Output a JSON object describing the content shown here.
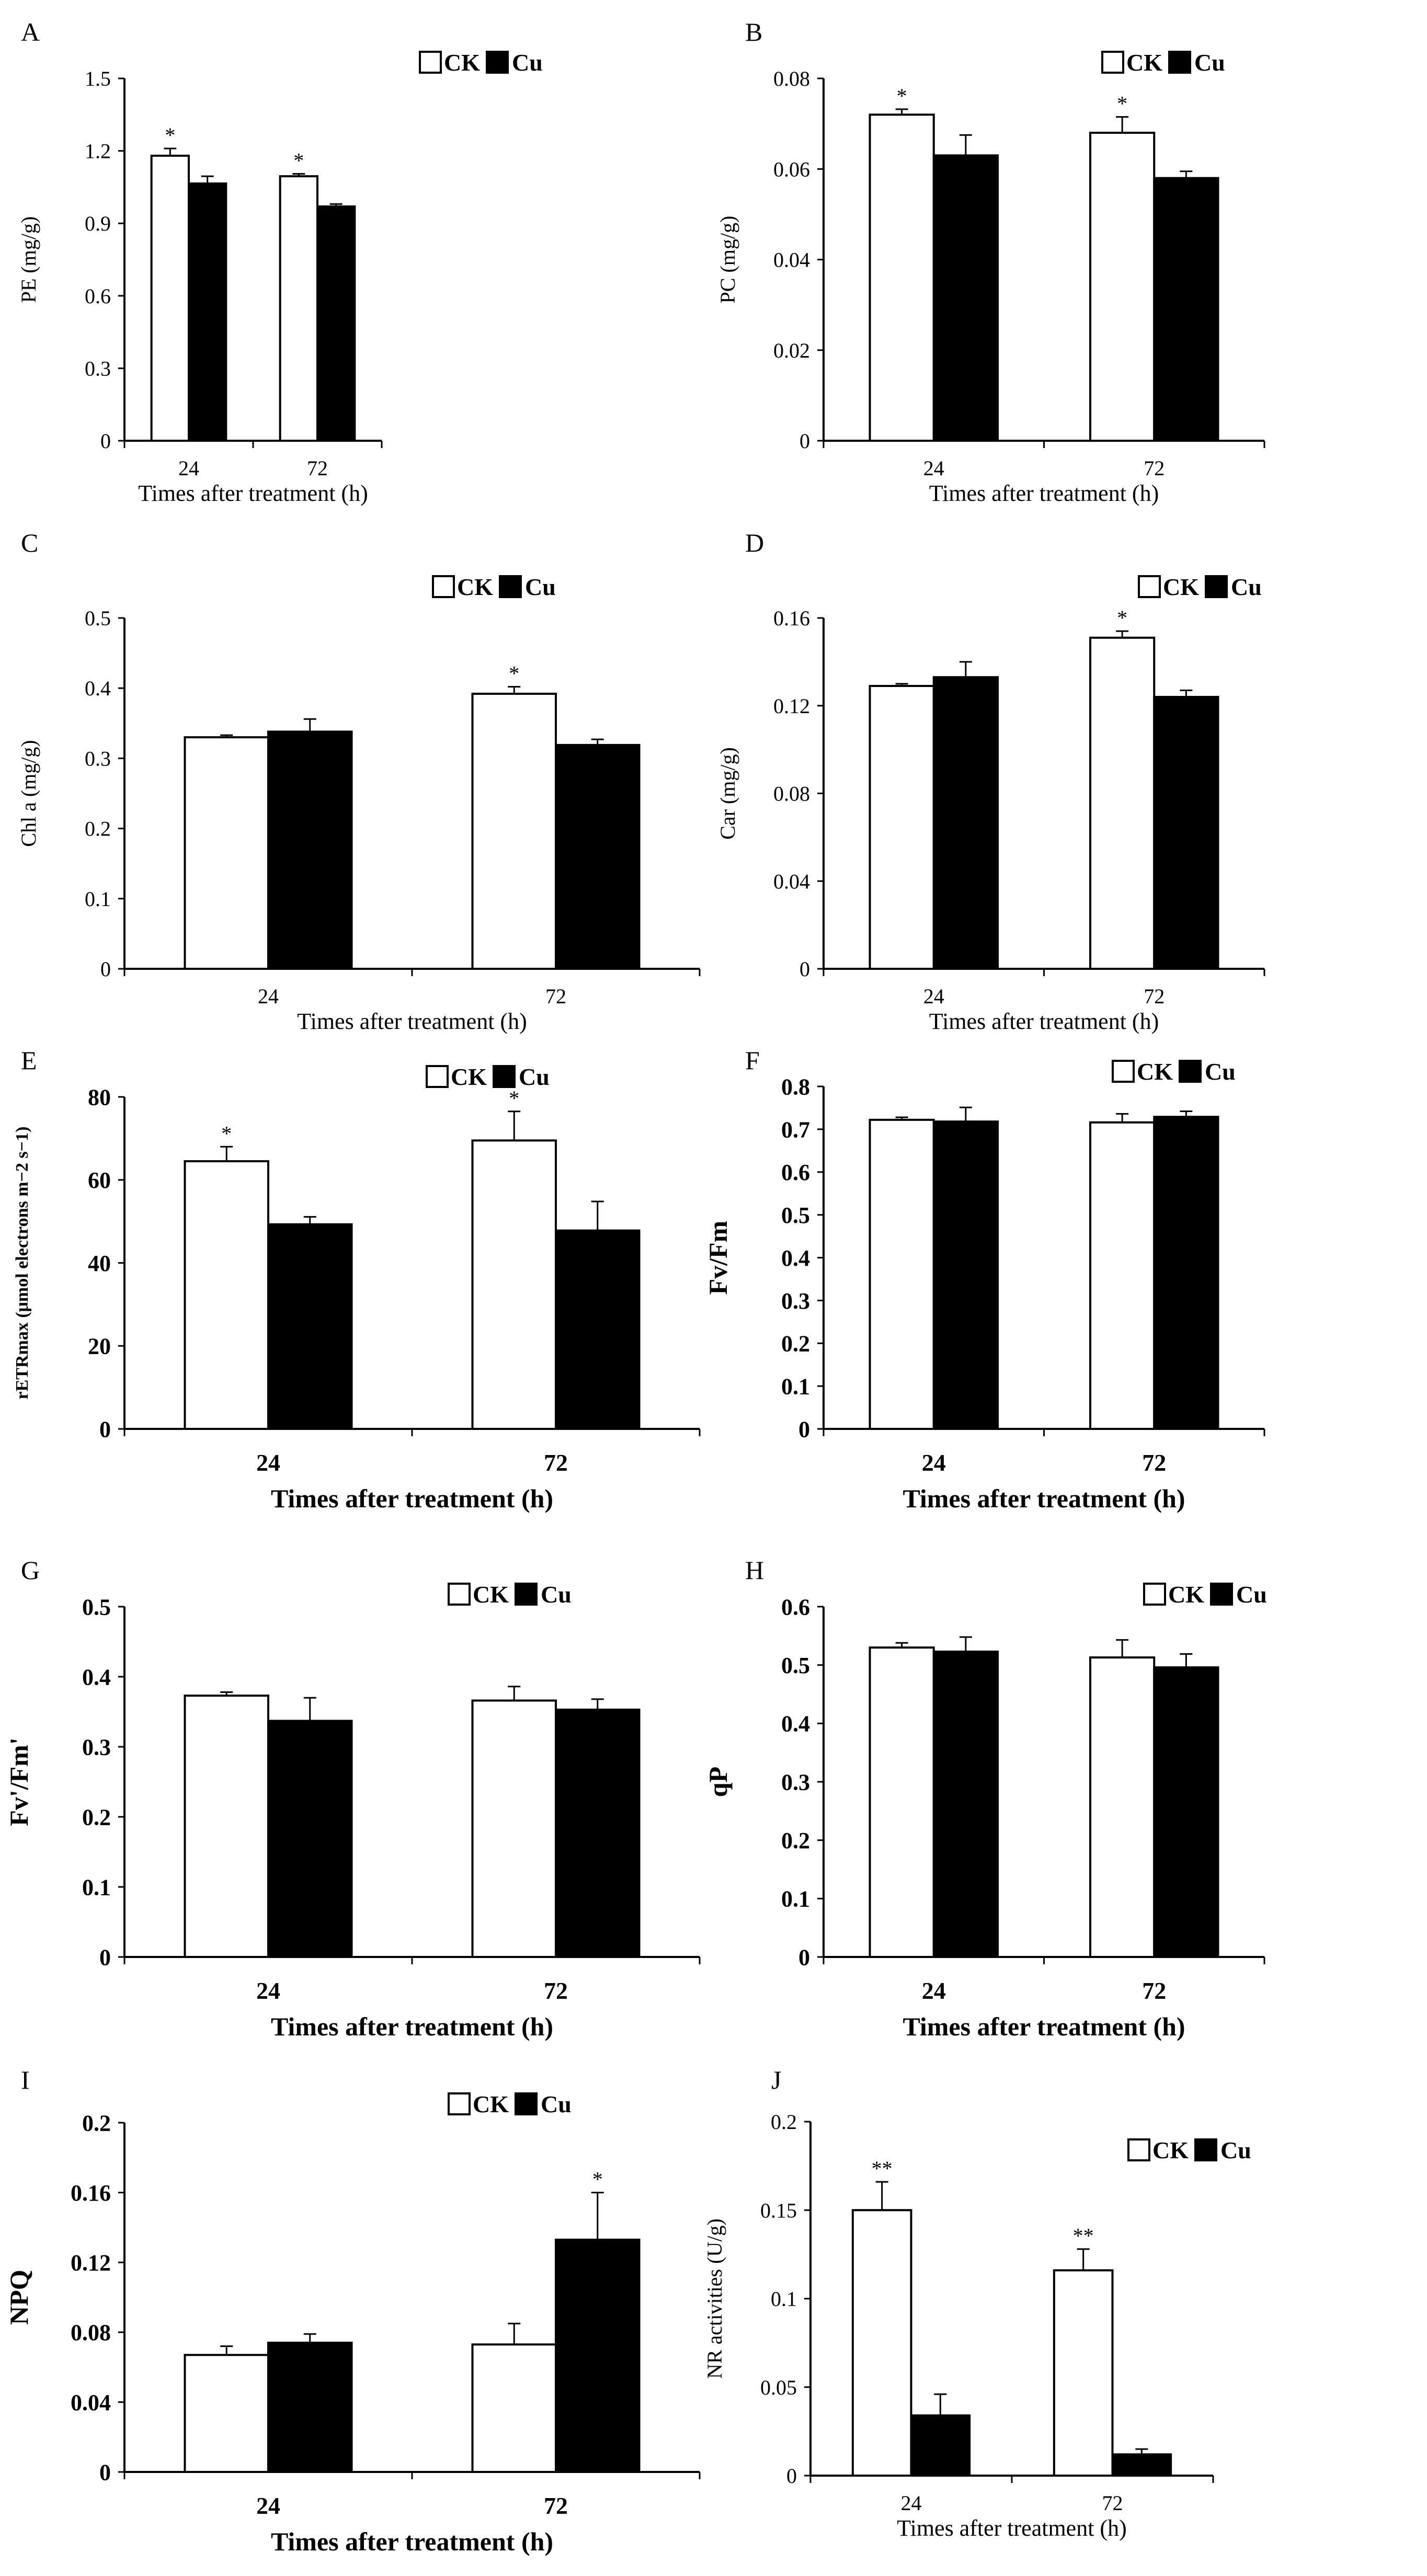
{
  "figure": {
    "legend_ck": "CK",
    "legend_cu": "Cu",
    "colors": {
      "ck_fill": "#ffffff",
      "cu_fill": "#000000",
      "axis": "#000000"
    }
  },
  "chart_data": [
    {
      "id": "A",
      "panel_label": "A",
      "type": "bar",
      "bold": false,
      "categories": [
        "24",
        "72"
      ],
      "series": [
        {
          "name": "CK",
          "values": [
            1.18,
            1.095
          ],
          "errors": [
            0.03,
            0.01
          ],
          "marks": [
            "*",
            "*"
          ]
        },
        {
          "name": "Cu",
          "values": [
            1.065,
            0.97
          ],
          "errors": [
            0.03,
            0.01
          ],
          "marks": [
            "",
            ""
          ]
        }
      ],
      "ylim": [
        0,
        1.5
      ],
      "yticks": [
        "0",
        "0.3",
        "0.6",
        "0.9",
        "1.2",
        "1.5"
      ],
      "ylabel": "PE (mg/g)",
      "xlabel": "Times after treatment (h)",
      "legend": [
        "CK",
        "Cu"
      ],
      "legend_position": "top-right"
    },
    {
      "id": "B",
      "panel_label": "B",
      "type": "bar",
      "bold": false,
      "categories": [
        "24",
        "72"
      ],
      "series": [
        {
          "name": "CK",
          "values": [
            0.072,
            0.068
          ],
          "errors": [
            0.0012,
            0.0035
          ],
          "marks": [
            "*",
            "*"
          ]
        },
        {
          "name": "Cu",
          "values": [
            0.063,
            0.058
          ],
          "errors": [
            0.0045,
            0.0015
          ],
          "marks": [
            "",
            ""
          ]
        }
      ],
      "ylim": [
        0,
        0.08
      ],
      "yticks": [
        "0",
        "0.02",
        "0.04",
        "0.06",
        "0.08"
      ],
      "ylabel": "PC (mg/g)",
      "xlabel": "Times after treatment (h)",
      "legend": [
        "CK",
        "Cu"
      ],
      "legend_position": "top-right"
    },
    {
      "id": "C",
      "panel_label": "C",
      "type": "bar",
      "bold": false,
      "categories": [
        "24",
        "72"
      ],
      "series": [
        {
          "name": "CK",
          "values": [
            0.33,
            0.392
          ],
          "errors": [
            0.003,
            0.01
          ],
          "marks": [
            "",
            "*"
          ]
        },
        {
          "name": "Cu",
          "values": [
            0.338,
            0.319
          ],
          "errors": [
            0.018,
            0.008
          ],
          "marks": [
            "",
            ""
          ]
        }
      ],
      "ylim": [
        0,
        0.5
      ],
      "yticks": [
        "0",
        "0.1",
        "0.2",
        "0.3",
        "0.4",
        "0.5"
      ],
      "ylabel": "Chl a (mg/g)",
      "xlabel": "Times after treatment (h)",
      "legend": [
        "CK",
        "Cu"
      ],
      "legend_position": "top-right"
    },
    {
      "id": "D",
      "panel_label": "D",
      "type": "bar",
      "bold": false,
      "categories": [
        "24",
        "72"
      ],
      "series": [
        {
          "name": "CK",
          "values": [
            0.129,
            0.151
          ],
          "errors": [
            0.001,
            0.003
          ],
          "marks": [
            "",
            "*"
          ]
        },
        {
          "name": "Cu",
          "values": [
            0.133,
            0.124
          ],
          "errors": [
            0.007,
            0.003
          ],
          "marks": [
            "",
            ""
          ]
        }
      ],
      "ylim": [
        0,
        0.16
      ],
      "yticks": [
        "0",
        "0.04",
        "0.08",
        "0.12",
        "0.16"
      ],
      "ylabel": "Car (mg/g)",
      "xlabel": "Times after treatment (h)",
      "legend": [
        "CK",
        "Cu"
      ],
      "legend_position": "top-right"
    },
    {
      "id": "E",
      "panel_label": "E",
      "type": "bar",
      "bold": true,
      "categories": [
        "24",
        "72"
      ],
      "series": [
        {
          "name": "CK",
          "values": [
            64.5,
            69.5
          ],
          "errors": [
            3.5,
            7.0
          ],
          "marks": [
            "*",
            "*"
          ]
        },
        {
          "name": "Cu",
          "values": [
            49.3,
            47.8
          ],
          "errors": [
            1.8,
            7.0
          ],
          "marks": [
            "",
            ""
          ]
        }
      ],
      "ylim": [
        0,
        80
      ],
      "yticks": [
        "0",
        "20",
        "40",
        "60",
        "80"
      ],
      "ylabel": "rETRmax (μmol electrons m−2 s−1)",
      "xlabel": "Times after treatment (h)",
      "legend": [
        "CK",
        "Cu"
      ],
      "legend_position": "top-right"
    },
    {
      "id": "F",
      "panel_label": "F",
      "type": "bar",
      "bold": true,
      "categories": [
        "24",
        "72"
      ],
      "series": [
        {
          "name": "CK",
          "values": [
            0.722,
            0.716
          ],
          "errors": [
            0.006,
            0.02
          ],
          "marks": [
            "",
            ""
          ]
        },
        {
          "name": "Cu",
          "values": [
            0.718,
            0.729
          ],
          "errors": [
            0.033,
            0.013
          ],
          "marks": [
            "",
            ""
          ]
        }
      ],
      "ylim": [
        0,
        0.8
      ],
      "yticks": [
        "0",
        "0.1",
        "0.2",
        "0.3",
        "0.4",
        "0.5",
        "0.6",
        "0.7",
        "0.8"
      ],
      "ylabel": "Fv/Fm",
      "xlabel": "Times after treatment (h)",
      "legend": [
        "CK",
        "Cu"
      ],
      "legend_position": "top-right"
    },
    {
      "id": "G",
      "panel_label": "G",
      "type": "bar",
      "bold": true,
      "categories": [
        "24",
        "72"
      ],
      "series": [
        {
          "name": "CK",
          "values": [
            0.373,
            0.366
          ],
          "errors": [
            0.005,
            0.02
          ],
          "marks": [
            "",
            ""
          ]
        },
        {
          "name": "Cu",
          "values": [
            0.337,
            0.353
          ],
          "errors": [
            0.033,
            0.015
          ],
          "marks": [
            "",
            ""
          ]
        }
      ],
      "ylim": [
        0,
        0.5
      ],
      "yticks": [
        "0",
        "0.1",
        "0.2",
        "0.3",
        "0.4",
        "0.5"
      ],
      "ylabel": "Fv'/Fm'",
      "xlabel": "Times after treatment (h)",
      "legend": [
        "CK",
        "Cu"
      ],
      "legend_position": "top-right"
    },
    {
      "id": "H",
      "panel_label": "H",
      "type": "bar",
      "bold": true,
      "categories": [
        "24",
        "72"
      ],
      "series": [
        {
          "name": "CK",
          "values": [
            0.53,
            0.513
          ],
          "errors": [
            0.008,
            0.03
          ],
          "marks": [
            "",
            ""
          ]
        },
        {
          "name": "Cu",
          "values": [
            0.523,
            0.496
          ],
          "errors": [
            0.025,
            0.023
          ],
          "marks": [
            "",
            ""
          ]
        }
      ],
      "ylim": [
        0,
        0.6
      ],
      "yticks": [
        "0",
        "0.1",
        "0.2",
        "0.3",
        "0.4",
        "0.5",
        "0.6"
      ],
      "ylabel": "qP",
      "xlabel": "Times after treatment (h)",
      "legend": [
        "CK",
        "Cu"
      ],
      "legend_position": "top-right"
    },
    {
      "id": "I",
      "panel_label": "I",
      "type": "bar",
      "bold": true,
      "categories": [
        "24",
        "72"
      ],
      "series": [
        {
          "name": "CK",
          "values": [
            0.067,
            0.073
          ],
          "errors": [
            0.005,
            0.012
          ],
          "marks": [
            "",
            ""
          ]
        },
        {
          "name": "Cu",
          "values": [
            0.074,
            0.133
          ],
          "errors": [
            0.005,
            0.027
          ],
          "marks": [
            "",
            "*"
          ]
        }
      ],
      "ylim": [
        0,
        0.2
      ],
      "yticks": [
        "0",
        "0.04",
        "0.08",
        "0.12",
        "0.16",
        "0.2"
      ],
      "ylabel": "NPQ",
      "xlabel": "Times after treatment (h)",
      "legend": [
        "CK",
        "Cu"
      ],
      "legend_position": "top-right"
    },
    {
      "id": "J",
      "panel_label": "J",
      "type": "bar",
      "bold": false,
      "categories": [
        "24",
        "72"
      ],
      "series": [
        {
          "name": "CK",
          "values": [
            0.15,
            0.116
          ],
          "errors": [
            0.016,
            0.012
          ],
          "marks": [
            "**",
            "**"
          ]
        },
        {
          "name": "Cu",
          "values": [
            0.034,
            0.012
          ],
          "errors": [
            0.012,
            0.003
          ],
          "marks": [
            "",
            ""
          ]
        }
      ],
      "ylim": [
        0,
        0.2
      ],
      "yticks": [
        "0",
        "0.05",
        "0.1",
        "0.15",
        "0.2"
      ],
      "ylabel": "NR activities (U/g)",
      "xlabel": "Times after treatment (h)",
      "legend": [
        "CK",
        "Cu"
      ],
      "legend_position": "top-right"
    }
  ]
}
